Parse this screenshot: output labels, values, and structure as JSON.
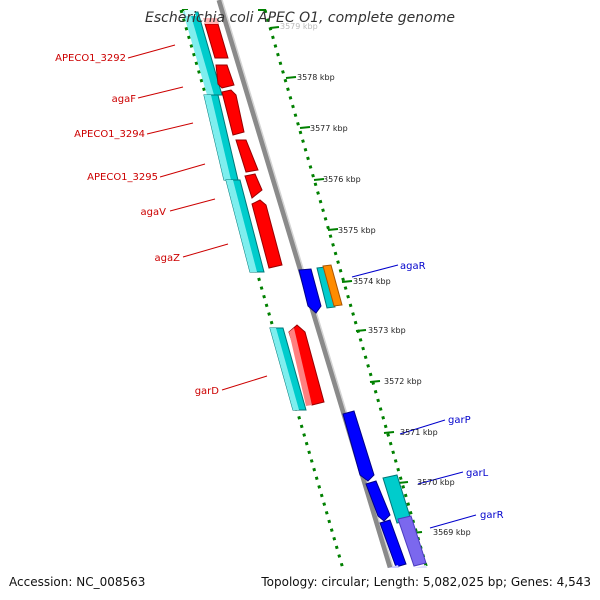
{
  "title": "Escherichia coli APEC O1, complete genome",
  "footer": {
    "accession": "Accession: NC_008563",
    "summary": "Topology: circular; Length: 5,082,025 bp; Genes: 4,543"
  },
  "colors": {
    "cds_forward_red": "#ff0000",
    "cds_forward_cyan": "#00cccc",
    "cds_reverse_blue": "#0000ff",
    "cds_reverse_purple": "#7b68ee",
    "orange": "#ff8c00",
    "backbone": "#808080",
    "tick": "#008000",
    "label_forward": "#cc0000",
    "label_reverse": "#0000cc"
  },
  "kbp_labels": [
    "3578 kbp",
    "3577 kbp",
    "3576 kbp",
    "3575 kbp",
    "3574 kbp",
    "3573 kbp",
    "3572 kbp",
    "3571 kbp",
    "3570 kbp",
    "3569 kbp"
  ],
  "top_clipped_label": "3579 kbp",
  "forward_genes": [
    "APECO1_3292",
    "agaF",
    "APECO1_3294",
    "APECO1_3295",
    "agaV",
    "agaZ",
    "garD"
  ],
  "reverse_genes": [
    "agaR",
    "garP",
    "garL",
    "garR"
  ]
}
